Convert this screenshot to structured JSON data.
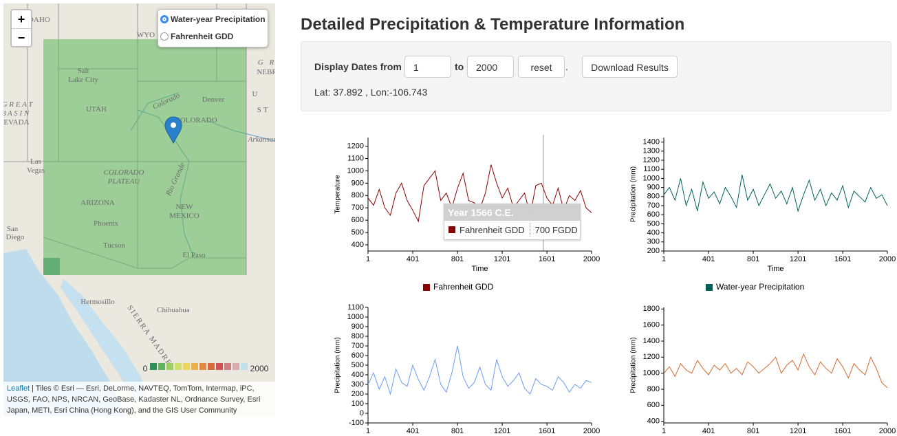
{
  "map": {
    "zoom_in": "+",
    "zoom_out": "−",
    "layers": [
      "Water-year Precipitation",
      "Fahrenheit GDD"
    ],
    "selected_layer": 0,
    "places": [
      "IDAHO",
      "WYO",
      "Salt",
      "Lake City",
      "UTAH",
      "G R E A T",
      "B A S I N",
      "NEVADA",
      "Denver",
      "COLORADO",
      "Colorado",
      "Las",
      "Vegas",
      "COLORADO",
      "PLATEAU",
      "ARIZONA",
      "Phoenix",
      "Tucson",
      "NEW",
      "MEXICO",
      "El Paso",
      "Rio Grande",
      "Arkansas",
      "San",
      "Diego",
      "Hermosillo",
      "Chihuahua",
      "SIERRA MADRE",
      "U",
      "ST",
      "G R",
      "NEBR"
    ],
    "legend": {
      "min_label": "0",
      "max_label": "2000",
      "colors": [
        "#2f8f57",
        "#5fb35f",
        "#9ccf63",
        "#cfe06a",
        "#eed65e",
        "#eab24e",
        "#e28a42",
        "#d86a3e",
        "#d05252",
        "#c98080",
        "#d9aab0",
        "#bfe2ea"
      ]
    },
    "attribution_link": "Leaflet",
    "attribution": "| Tiles © Esri — Esri, DeLorme, NAVTEQ, TomTom, Intermap, iPC, USGS, FAO, NPS, NRCAN, GeoBase, Kadaster NL, Ordnance Survey, Esri Japan, METI, Esri China (Hong Kong), and the GIS User Community"
  },
  "panel": {
    "title": "Detailed Precipitation & Temperature Information",
    "dates_label": "Display Dates from",
    "from": "1",
    "to_label": "to",
    "to": "2000",
    "reset": "reset",
    "dot": ".",
    "download": "Download Results",
    "coords": "Lat: 37.892 , Lon:-106.743"
  },
  "tooltip": {
    "title": "Year 1566 C.E.",
    "series": "Fahrenheit GDD",
    "value": "700 FGDD"
  },
  "chart_data": [
    {
      "type": "line",
      "x_label": "Time",
      "y_label": "Temperature",
      "x": [
        1,
        51,
        101,
        151,
        201,
        251,
        301,
        351,
        401,
        451,
        501,
        551,
        601,
        651,
        701,
        751,
        801,
        851,
        901,
        951,
        1001,
        1051,
        1101,
        1151,
        1201,
        1251,
        1301,
        1351,
        1401,
        1451,
        1501,
        1551,
        1601,
        1651,
        1701,
        1751,
        1801,
        1851,
        1901,
        1951,
        2000
      ],
      "series": [
        {
          "name": "Fahrenheit GDD",
          "color": "#8b0000",
          "values": [
            780,
            720,
            850,
            700,
            640,
            820,
            900,
            760,
            680,
            590,
            880,
            940,
            1000,
            760,
            820,
            700,
            860,
            980,
            760,
            740,
            690,
            820,
            1050,
            900,
            780,
            860,
            700,
            760,
            820,
            640,
            880,
            900,
            780,
            720,
            860,
            680,
            800,
            760,
            840,
            700,
            660
          ]
        }
      ],
      "xlim": [
        1,
        2000
      ],
      "xticks": [
        1,
        401,
        801,
        1201,
        1601,
        2000
      ],
      "ylim": [
        350,
        1270
      ],
      "yticks": [
        400,
        500,
        600,
        700,
        800,
        900,
        1000,
        1100,
        1200
      ]
    },
    {
      "type": "line",
      "x_label": "Time",
      "y_label": "Precipitation (mm)",
      "x": [
        1,
        51,
        101,
        151,
        201,
        251,
        301,
        351,
        401,
        451,
        501,
        551,
        601,
        651,
        701,
        751,
        801,
        851,
        901,
        951,
        1001,
        1051,
        1101,
        1151,
        1201,
        1251,
        1301,
        1351,
        1401,
        1451,
        1501,
        1551,
        1601,
        1651,
        1701,
        1751,
        1801,
        1851,
        1901,
        1951,
        2000
      ],
      "series": [
        {
          "name": "Water-year Precipitation",
          "color": "#00605a",
          "values": [
            820,
            900,
            760,
            1000,
            700,
            880,
            640,
            960,
            780,
            850,
            720,
            900,
            800,
            680,
            1040,
            760,
            880,
            700,
            820,
            940,
            780,
            860,
            720,
            900,
            640,
            820,
            980,
            760,
            880,
            700,
            840,
            760,
            920,
            680,
            860,
            800,
            740,
            900,
            780,
            820,
            700
          ]
        }
      ],
      "xlim": [
        1,
        2000
      ],
      "xticks": [
        1,
        401,
        801,
        1201,
        1601,
        2000
      ],
      "ylim": [
        200,
        1450
      ],
      "yticks": [
        200,
        300,
        400,
        500,
        600,
        700,
        800,
        900,
        1000,
        1100,
        1200,
        1300,
        1400
      ]
    },
    {
      "type": "line",
      "y_label": "Precipitation (mm)",
      "x": [
        1,
        51,
        101,
        151,
        201,
        251,
        301,
        351,
        401,
        451,
        501,
        551,
        601,
        651,
        701,
        751,
        801,
        851,
        901,
        951,
        1001,
        1051,
        1101,
        1151,
        1201,
        1251,
        1301,
        1351,
        1401,
        1451,
        1501,
        1551,
        1601,
        1651,
        1701,
        1751,
        1801,
        1851,
        1901,
        1951,
        2000
      ],
      "color": "#6a9ef0",
      "values": [
        300,
        420,
        250,
        380,
        200,
        460,
        320,
        280,
        500,
        350,
        240,
        380,
        560,
        300,
        220,
        420,
        700,
        380,
        260,
        320,
        480,
        300,
        240,
        560,
        380,
        280,
        340,
        420,
        260,
        200,
        360,
        300,
        280,
        240,
        380,
        320,
        220,
        300,
        260,
        340,
        320
      ],
      "xlim": [
        1,
        2000
      ],
      "xticks": [
        1,
        401,
        801,
        1201,
        1601,
        2000
      ],
      "ylim": [
        -100,
        1100
      ],
      "yticks": [
        -100,
        0,
        100,
        200,
        300,
        400,
        500,
        600,
        700,
        800,
        900,
        1000,
        1100
      ]
    },
    {
      "type": "line",
      "y_label": "Precipitation (mm)",
      "x": [
        1,
        51,
        101,
        151,
        201,
        251,
        301,
        351,
        401,
        451,
        501,
        551,
        601,
        651,
        701,
        751,
        801,
        851,
        901,
        951,
        1001,
        1051,
        1101,
        1151,
        1201,
        1251,
        1301,
        1351,
        1401,
        1451,
        1501,
        1551,
        1601,
        1651,
        1701,
        1751,
        1801,
        1851,
        1901,
        1951,
        2000
      ],
      "color": "#d2692e",
      "values": [
        1000,
        1080,
        960,
        1120,
        1040,
        1000,
        1160,
        1060,
        980,
        1100,
        1040,
        1120,
        1000,
        1060,
        980,
        1140,
        1080,
        1000,
        1060,
        1120,
        1200,
        1000,
        1100,
        1160,
        1040,
        1240,
        1080,
        980,
        1140,
        1060,
        1000,
        1180,
        1080,
        940,
        1120,
        1040,
        980,
        1200,
        1060,
        880,
        820
      ],
      "xlim": [
        1,
        2000
      ],
      "xticks": [
        1,
        401,
        801,
        1201,
        1601,
        2000
      ],
      "ylim": [
        380,
        1820
      ],
      "yticks": [
        400,
        600,
        800,
        1000,
        1200,
        1400,
        1600,
        1800
      ]
    }
  ]
}
